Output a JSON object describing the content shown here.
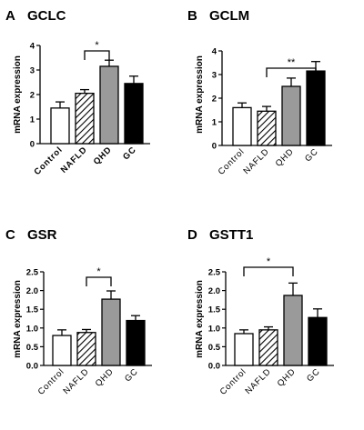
{
  "colors": {
    "Control": "#ffffff",
    "NAFLD": "#ffffff",
    "QHD": "#9a9a9a",
    "GC": "#000000",
    "axis": "#000000"
  },
  "chart_data": [
    {
      "type": "bar",
      "panel": "A",
      "title": "GCLC",
      "ylabel": "mRNA expression",
      "categories": [
        "Control",
        "NAFLD",
        "QHD",
        "GC"
      ],
      "values": [
        1.45,
        2.05,
        3.15,
        2.45
      ],
      "errors": [
        0.25,
        0.15,
        0.25,
        0.3
      ],
      "fills": [
        "white",
        "hatched",
        "gray",
        "black"
      ],
      "ylim": [
        0,
        4
      ],
      "yticks": [
        0,
        1,
        2,
        3,
        4
      ],
      "ytick_labels": [
        "0",
        "1",
        "2",
        "3",
        "4"
      ],
      "xtick_bold": true,
      "significance": [
        {
          "from": "NAFLD",
          "to": "QHD",
          "label": "*"
        }
      ]
    },
    {
      "type": "bar",
      "panel": "B",
      "title": "GCLM",
      "ylabel": "mRNA expression",
      "categories": [
        "Control",
        "NAFLD",
        "QHD",
        "GC"
      ],
      "values": [
        1.6,
        1.45,
        2.5,
        3.15
      ],
      "errors": [
        0.2,
        0.2,
        0.35,
        0.4
      ],
      "fills": [
        "white",
        "hatched",
        "gray",
        "black"
      ],
      "ylim": [
        0,
        4
      ],
      "yticks": [
        0,
        1,
        2,
        3,
        4
      ],
      "ytick_labels": [
        "0",
        "1",
        "2",
        "3",
        "4"
      ],
      "xtick_bold": false,
      "significance": [
        {
          "from": "NAFLD",
          "to": "GC",
          "label": "**"
        }
      ]
    },
    {
      "type": "bar",
      "panel": "C",
      "title": "GSR",
      "ylabel": "mRNA expression",
      "categories": [
        "Control",
        "NAFLD",
        "QHD",
        "GC"
      ],
      "values": [
        0.8,
        0.88,
        1.77,
        1.2
      ],
      "errors": [
        0.15,
        0.08,
        0.22,
        0.13
      ],
      "fills": [
        "white",
        "hatched",
        "gray",
        "black"
      ],
      "ylim": [
        0,
        2.5
      ],
      "yticks": [
        0,
        0.5,
        1,
        1.5,
        2,
        2.5
      ],
      "ytick_labels": [
        "0.0",
        "0.5",
        "1.0",
        "1.5",
        "2.0",
        "2.5"
      ],
      "xtick_bold": false,
      "significance": [
        {
          "from": "NAFLD",
          "to": "QHD",
          "label": "*"
        }
      ]
    },
    {
      "type": "bar",
      "panel": "D",
      "title": "GSTT1",
      "ylabel": "mRNA expression",
      "categories": [
        "Control",
        "NAFLD",
        "QHD",
        "GC"
      ],
      "values": [
        0.85,
        0.95,
        1.87,
        1.28
      ],
      "errors": [
        0.1,
        0.08,
        0.33,
        0.23
      ],
      "fills": [
        "white",
        "hatched",
        "gray",
        "black"
      ],
      "ylim": [
        0,
        2.5
      ],
      "yticks": [
        0,
        0.5,
        1,
        1.5,
        2,
        2.5
      ],
      "ytick_labels": [
        "0.0",
        "0.5",
        "1.0",
        "1.5",
        "2.0",
        "2.5"
      ],
      "xtick_bold": false,
      "significance": [
        {
          "from": "Control",
          "to": "QHD",
          "label": "*"
        }
      ]
    }
  ]
}
